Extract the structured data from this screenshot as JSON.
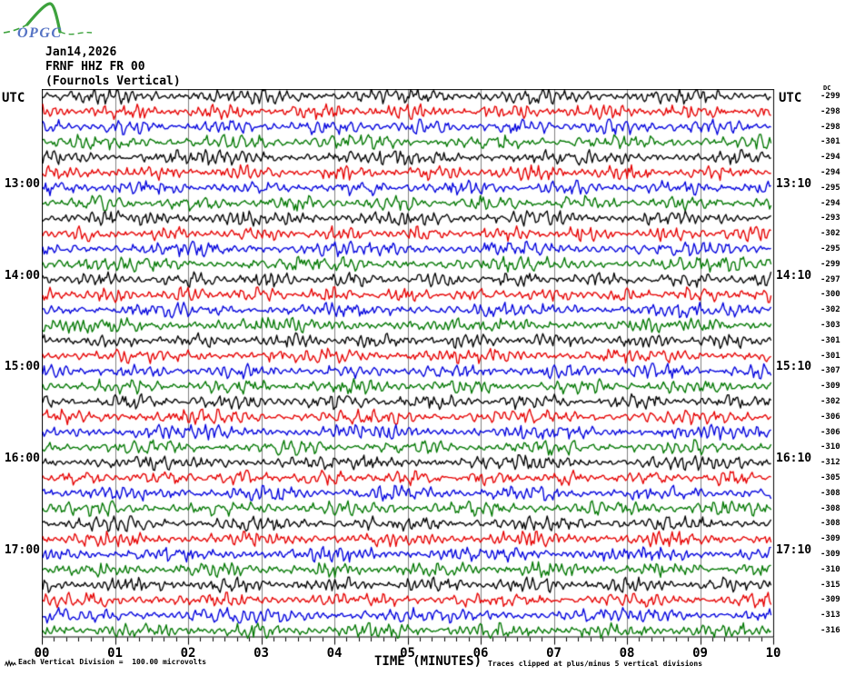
{
  "header": {
    "date": "Jan14,2026",
    "station": "FRNF HHZ FR 00",
    "subtitle": "(Fournols Vertical)"
  },
  "logo": {
    "text": "OPGC",
    "text_color": "#5573c4",
    "curve_color": "#3da23d"
  },
  "labels": {
    "utc": "UTC",
    "dc": "DC"
  },
  "footer": {
    "scale_note": "Each Vertical Division =  100.00 microvolts",
    "xlabel": "TIME (MINUTES)",
    "clip_note": "Traces clipped at plus/minus 5 vertical divisions"
  },
  "chart_data": {
    "type": "line",
    "subtype": "helicorder-seismogram",
    "title": "FRNF HHZ FR 00 (Fournols Vertical) Jan14,2026",
    "xlabel": "TIME (MINUTES)",
    "x_major_ticks": [
      "00",
      "01",
      "02",
      "03",
      "04",
      "05",
      "06",
      "07",
      "08",
      "09",
      "10"
    ],
    "x_minor_intervals_per_major": 6,
    "minutes_per_row": 10,
    "num_rows": 36,
    "vertical_division_microvolts": 100.0,
    "clip_limit_divisions": 5,
    "grid_color": "#808080",
    "trace_color_cycle": [
      "#000000",
      "#e60000",
      "#0000dd",
      "#007700"
    ],
    "left_time_labels": {
      "6": "13:00",
      "12": "14:00",
      "18": "15:00",
      "24": "16:00",
      "30": "17:00"
    },
    "right_time_labels": {
      "6": "13:10",
      "12": "14:10",
      "18": "15:10",
      "24": "16:10",
      "30": "17:10"
    },
    "dc_offsets": [
      -299,
      -298,
      -298,
      -301,
      -294,
      -294,
      -295,
      -294,
      -293,
      -302,
      -295,
      -299,
      -297,
      -300,
      -302,
      -303,
      -301,
      -301,
      -307,
      -309,
      -302,
      -306,
      -306,
      -310,
      -312,
      -305,
      -308,
      -308,
      -308,
      -309,
      -309,
      -310,
      -315,
      -309,
      -313,
      -316
    ],
    "waveform_note": "continuous ambient seismic noise on every trace, peak amplitude well below one vertical division"
  }
}
